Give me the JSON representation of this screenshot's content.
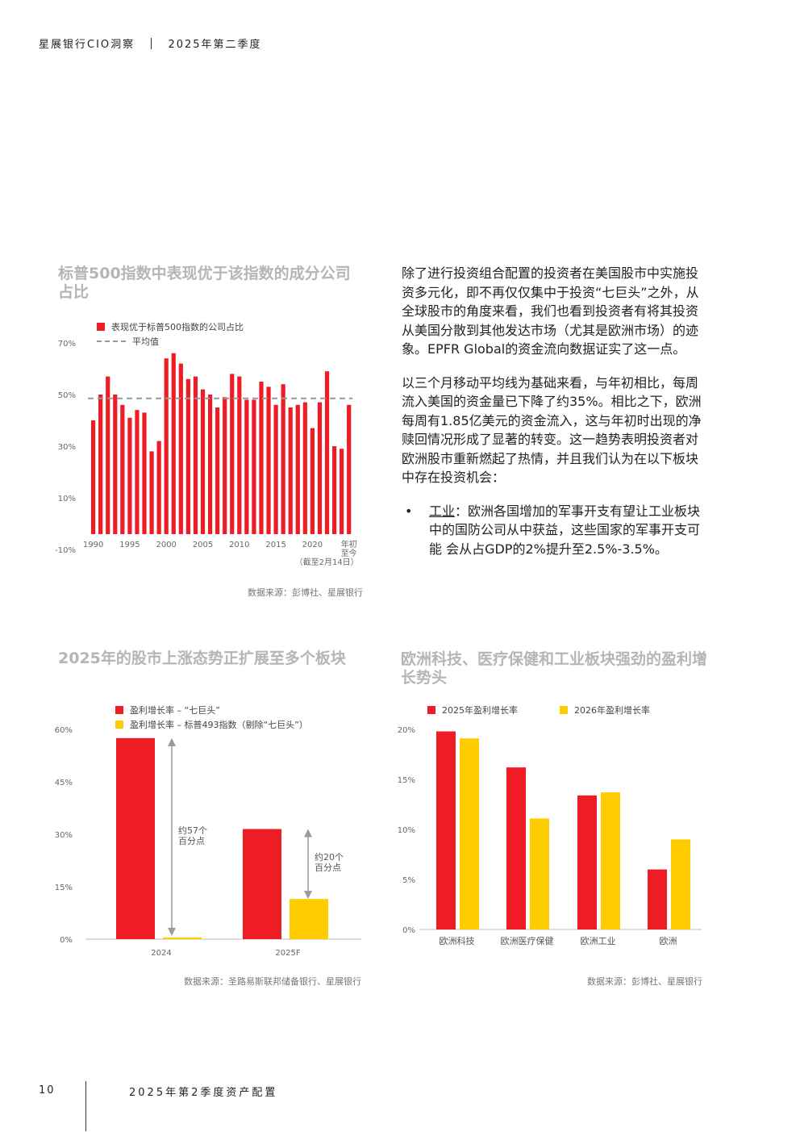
{
  "header": {
    "brand": "星展银行CIO洞察",
    "period": "2025年第二季度"
  },
  "chart1": {
    "title": "标普500指数中表现优于该指数的成分公司占比",
    "legend_bar": "表现优于标普500指数的公司占比",
    "legend_avg": "平均值",
    "source": "数据来源：彭博社、星展银行",
    "colors": {
      "bar": "#ee1c25",
      "avg": "#999999"
    },
    "chart_data": {
      "type": "bar",
      "title": "标普500指数中表现优于该指数的成分公司占比",
      "y_ticks": [
        "70%",
        "50%",
        "30%",
        "10%",
        "-10%"
      ],
      "ylim": [
        -10,
        70
      ],
      "x_ticks": [
        "1990",
        "1995",
        "2000",
        "2005",
        "2010",
        "2015",
        "2020",
        "年初\n至今\n（截至2月14日）"
      ],
      "categories": [
        "1990",
        "1991",
        "1992",
        "1993",
        "1994",
        "1995",
        "1996",
        "1997",
        "1998",
        "1999",
        "2000",
        "2001",
        "2002",
        "2003",
        "2004",
        "2005",
        "2006",
        "2007",
        "2008",
        "2009",
        "2010",
        "2011",
        "2012",
        "2013",
        "2014",
        "2015",
        "2016",
        "2017",
        "2018",
        "2019",
        "2020",
        "2021",
        "2022",
        "2023",
        "2024",
        "年初至今"
      ],
      "values": [
        40,
        50,
        57,
        50,
        46,
        41,
        44,
        43,
        28,
        32,
        64,
        66,
        62,
        56,
        57,
        52,
        50,
        45,
        49,
        58,
        57,
        48,
        48,
        55,
        53,
        46,
        54,
        45,
        46,
        47,
        37,
        47,
        59,
        30,
        29,
        46
      ],
      "average": 48.5
    }
  },
  "text": {
    "p1": "除了进行投资组合配置的投资者在美国股市中实施投资多元化，即不再仅仅集中于投资“七巨头”之外，从全球股市的角度来看，我们也看到投资者有将其投资从美国分散到其他发达市场（尤其是欧洲市场）的迹象。EPFR Global的资金流向数据证实了这一点。",
    "p2": "以三个月移动平均线为基础来看，与年初相比，每周流入美国的资金量已下降了约35%。相比之下，欧洲每周有1.85亿美元的资金流入，这与年初时出现的净赎回情况形成了显著的转变。这一趋势表明投资者对欧洲股市重新燃起了热情，并且我们认为在以下板块中存在投资机会：",
    "bullet_mark": "•",
    "bullet_title": "工业",
    "bullet_text": "：欧洲各国增加的军事开支有望让工业板块中的国防公司从中获益，这些国家的军事开支可能 会从占GDP的2%提升至2.5%-3.5%。"
  },
  "chart2": {
    "title": "2025年的股市上涨态势正扩展至多个板块",
    "legend": [
      "盈利增长率 – “七巨头”",
      "盈利增长率 – 标普493指数（剔除“七巨头”）"
    ],
    "annotations": [
      "约57个\n百分点",
      "约20个\n百分点"
    ],
    "source": "数据来源：圣路易斯联邦储备银行、星展银行",
    "colors": {
      "mag7": "#ee1c25",
      "sp493": "#ffcc00"
    },
    "chart_data": {
      "type": "bar",
      "title": "2025年的股市上涨态势正扩展至多个板块",
      "categories": [
        "2024",
        "2025F"
      ],
      "y_ticks": [
        "60%",
        "45%",
        "30%",
        "15%",
        "0%"
      ],
      "ylim": [
        0,
        60
      ],
      "series": [
        {
          "name": "盈利增长率 – “七巨头”",
          "values": [
            57.5,
            31.5
          ]
        },
        {
          "name": "盈利增长率 – 标普493指数（剔除“七巨头”）",
          "values": [
            0.5,
            11.5
          ]
        }
      ]
    }
  },
  "chart3": {
    "title": "欧洲科技、医疗保健和工业板块强劲的盈利增长势头",
    "source": "数据来源：彭博社、星展银行",
    "colors": {
      "y2025": "#ee1c25",
      "y2026": "#ffcc00"
    },
    "chart_data": {
      "type": "bar",
      "title": "欧洲科技、医疗保健和工业板块强劲的盈利增长势头",
      "categories": [
        "欧洲科技",
        "欧洲医疗保健",
        "欧洲工业",
        "欧洲"
      ],
      "y_ticks": [
        "20%",
        "15%",
        "10%",
        "5%",
        "0%"
      ],
      "ylim": [
        0,
        20
      ],
      "series": [
        {
          "name": "2025年盈利增长率",
          "values": [
            19.8,
            16.2,
            13.4,
            6.0
          ]
        },
        {
          "name": "2026年盈利增长率",
          "values": [
            19.1,
            11.1,
            13.7,
            9.0
          ]
        }
      ]
    }
  },
  "footer": {
    "page_number": "10",
    "title": "2025年第2季度资产配置"
  }
}
